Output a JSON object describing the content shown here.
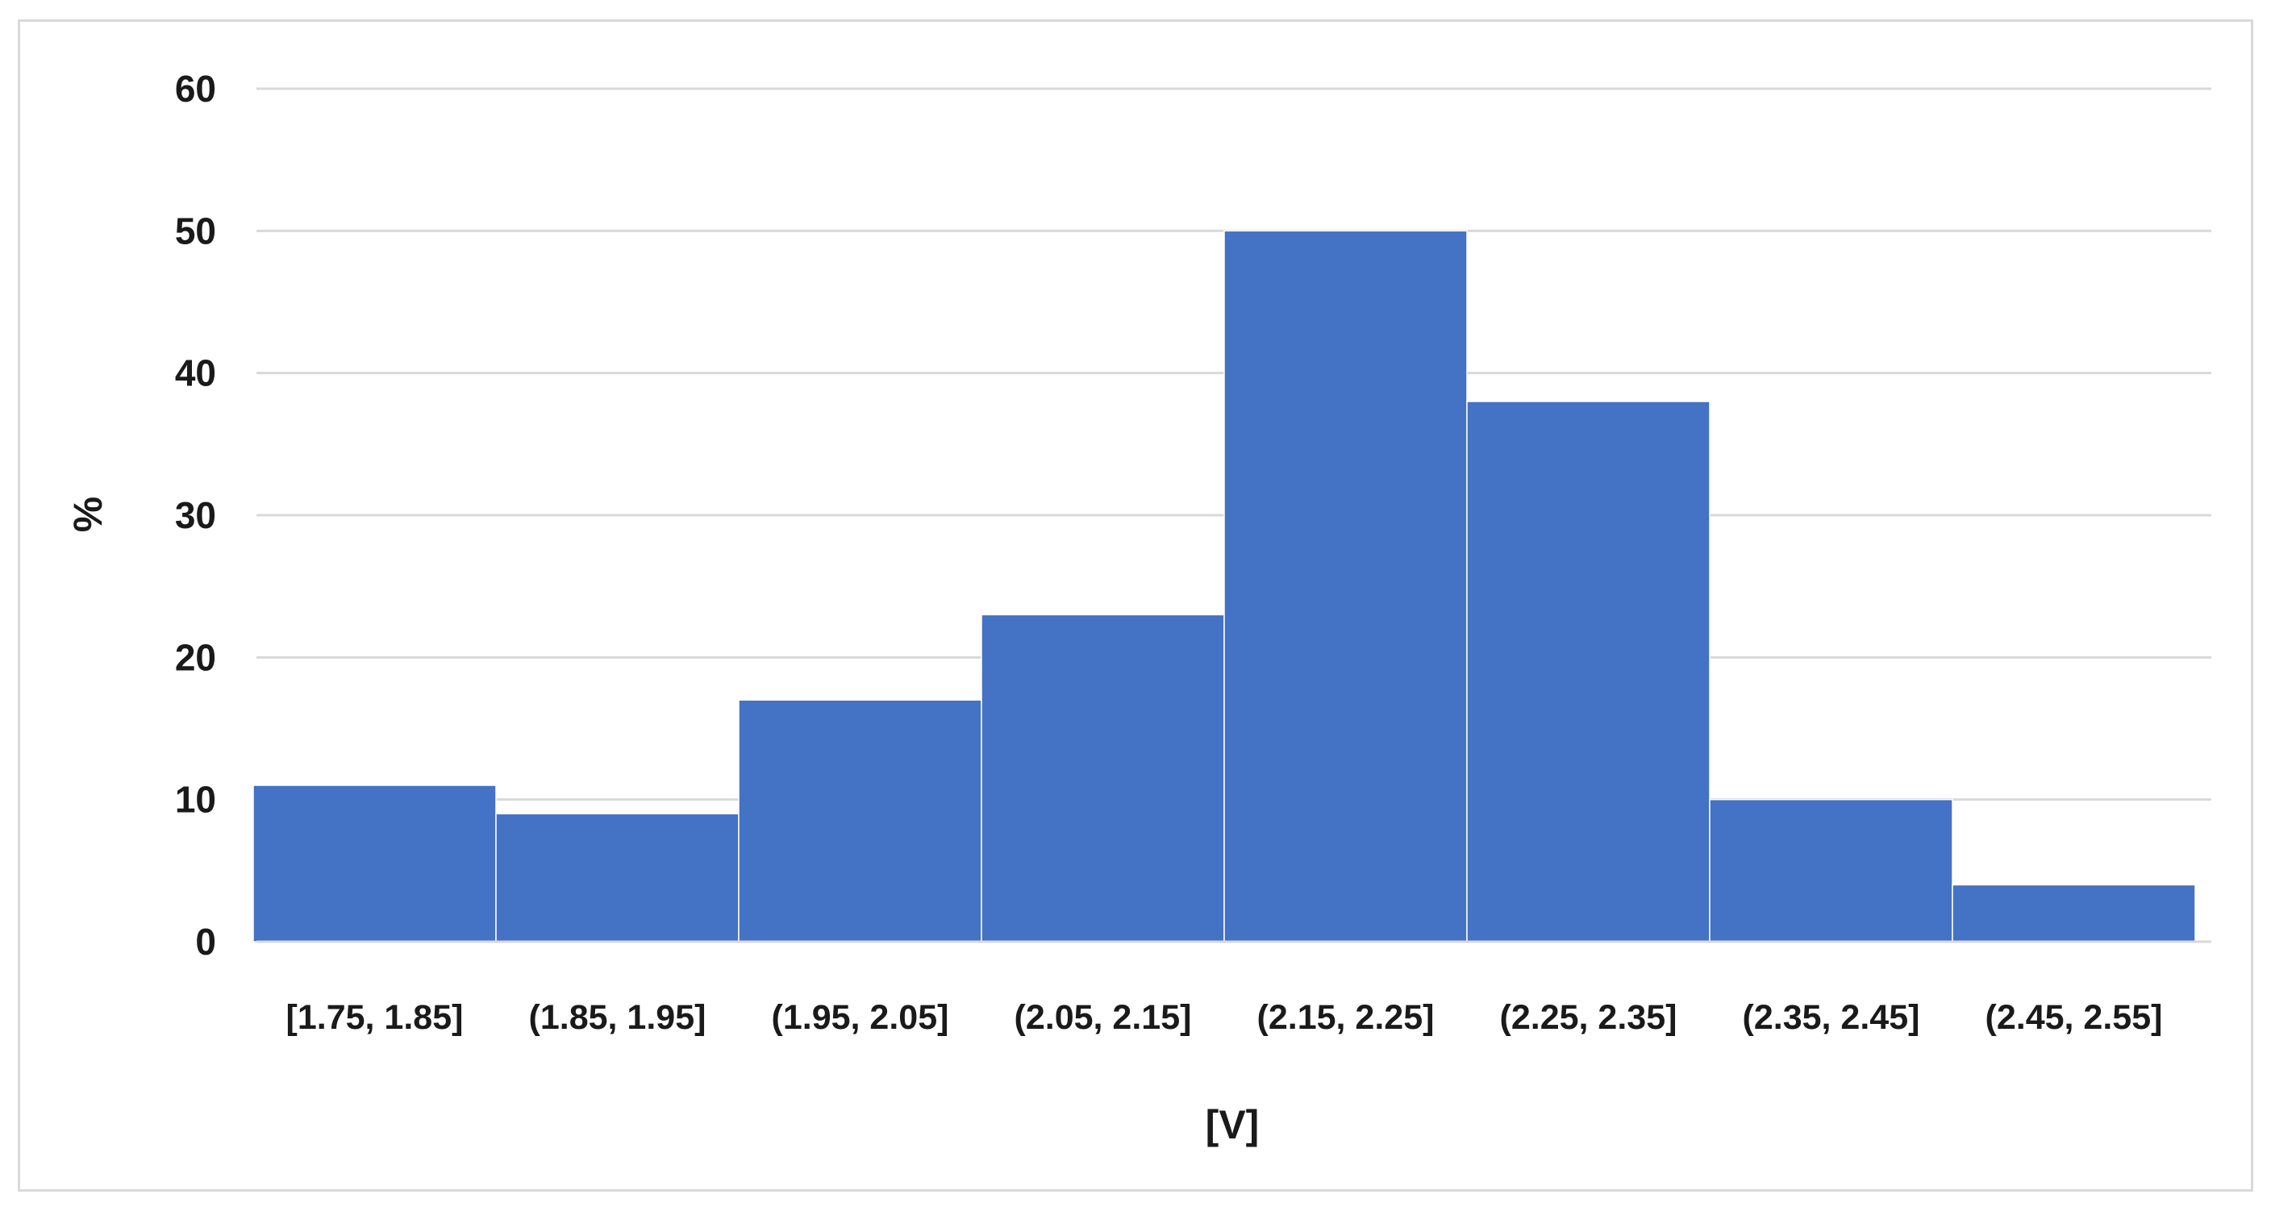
{
  "chart_data": {
    "type": "bar",
    "categories": [
      "[1.75, 1.85]",
      "(1.85, 1.95]",
      "(1.95, 2.05]",
      "(2.05, 2.15]",
      "(2.15, 2.25]",
      "(2.25, 2.35]",
      "(2.35, 2.45]",
      "(2.45, 2.55]"
    ],
    "values": [
      11,
      9,
      17,
      23,
      50,
      38,
      10,
      4
    ],
    "xlabel": "[V]",
    "ylabel": "%",
    "ylim": [
      0,
      60
    ],
    "yticks": [
      "0",
      "10",
      "20",
      "30",
      "40",
      "50",
      "60"
    ],
    "grid": true,
    "legend": "none",
    "colors": {
      "bar": "#4472C4",
      "bar_edge": "#ffffff",
      "grid": "#d9d9d9",
      "frame": "#d9d9d9"
    }
  }
}
